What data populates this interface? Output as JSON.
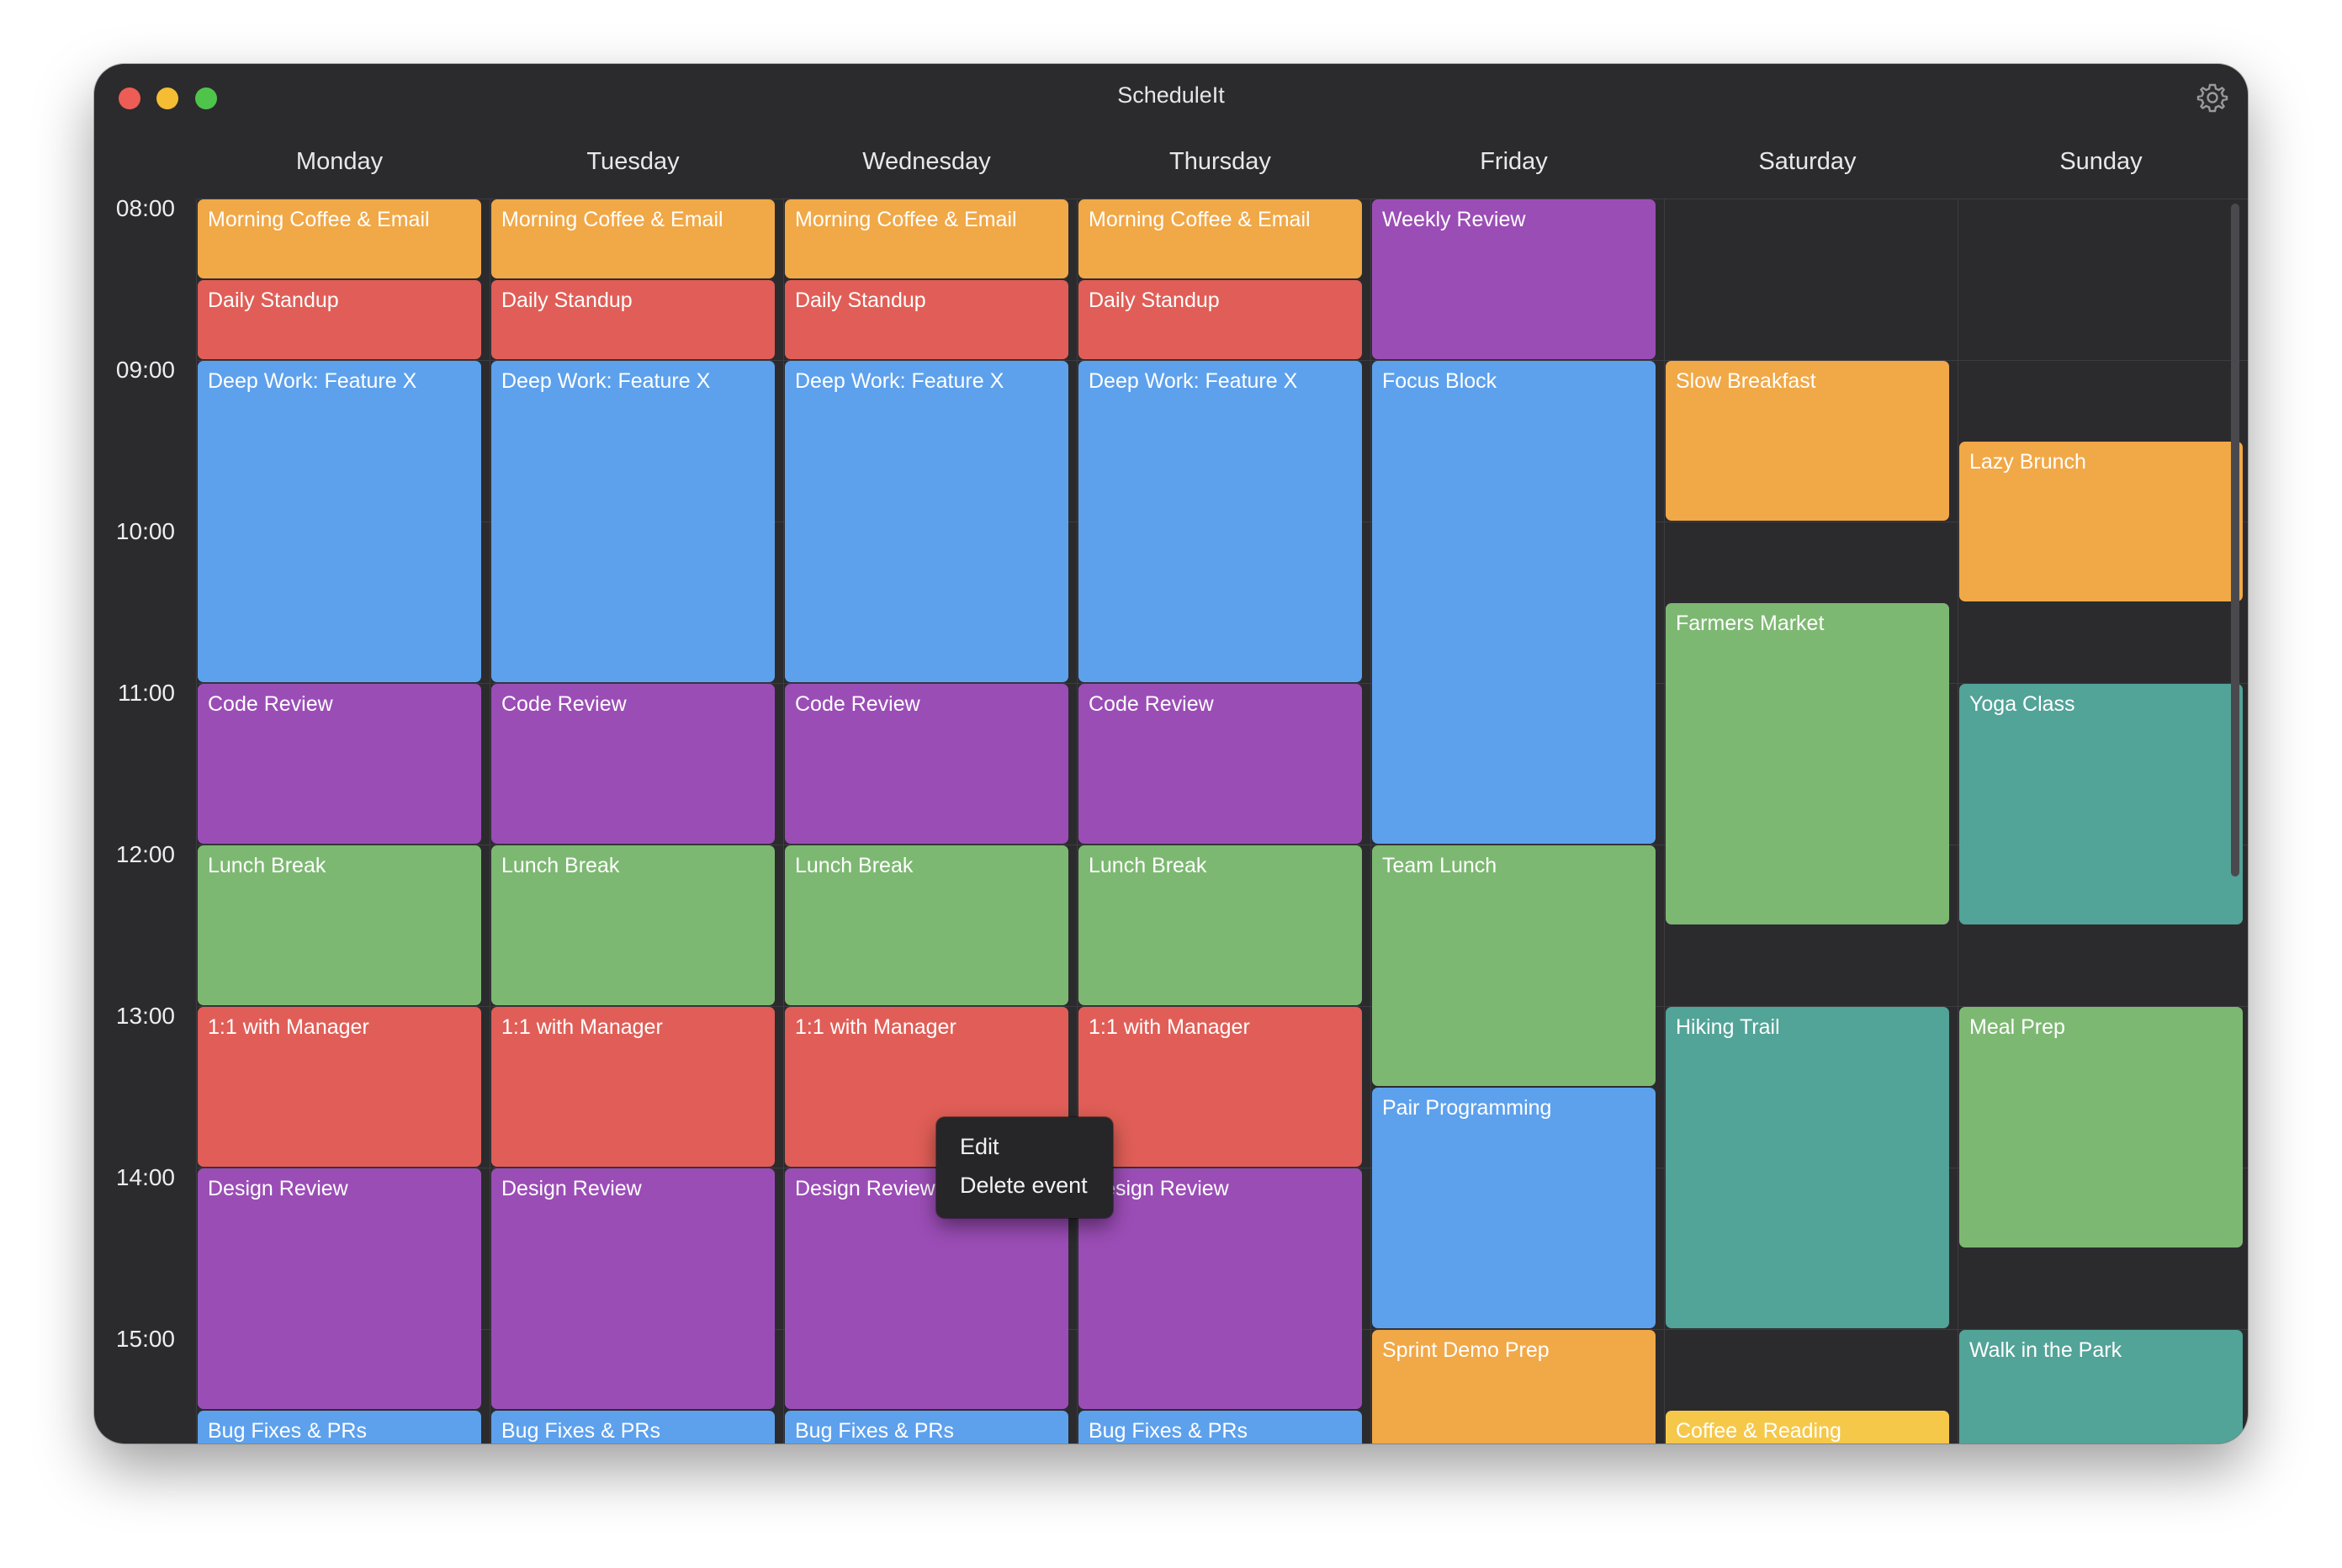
{
  "app": {
    "title": "ScheduleIt"
  },
  "window_controls": {
    "close": "close",
    "minimize": "minimize",
    "zoom": "zoom",
    "settings_icon": "gear-icon"
  },
  "colors": {
    "orange": "#f1a847",
    "red": "#e05e57",
    "blue": "#5da1ed",
    "purple": "#9b4db6",
    "green": "#7db872",
    "teal": "#52a398",
    "yellow": "#f5c84a"
  },
  "days": [
    "Monday",
    "Tuesday",
    "Wednesday",
    "Thursday",
    "Friday",
    "Saturday",
    "Sunday"
  ],
  "times": [
    "08:00",
    "09:00",
    "10:00",
    "11:00",
    "12:00",
    "13:00",
    "14:00",
    "15:00"
  ],
  "events": [
    {
      "day": 0,
      "start": "08:00",
      "end": "08:30",
      "title": "Morning Coffee & Email",
      "color": "orange"
    },
    {
      "day": 0,
      "start": "08:30",
      "end": "09:00",
      "title": "Daily Standup",
      "color": "red"
    },
    {
      "day": 0,
      "start": "09:00",
      "end": "11:00",
      "title": "Deep Work: Feature X",
      "color": "blue"
    },
    {
      "day": 0,
      "start": "11:00",
      "end": "12:00",
      "title": "Code Review",
      "color": "purple"
    },
    {
      "day": 0,
      "start": "12:00",
      "end": "13:00",
      "title": "Lunch Break",
      "color": "green"
    },
    {
      "day": 0,
      "start": "13:00",
      "end": "14:00",
      "title": "1:1 with Manager",
      "color": "red"
    },
    {
      "day": 0,
      "start": "14:00",
      "end": "15:30",
      "title": "Design Review",
      "color": "purple"
    },
    {
      "day": 0,
      "start": "15:30",
      "end": "16:30",
      "title": "Bug Fixes & PRs",
      "color": "blue"
    },
    {
      "day": 1,
      "start": "08:00",
      "end": "08:30",
      "title": "Morning Coffee & Email",
      "color": "orange"
    },
    {
      "day": 1,
      "start": "08:30",
      "end": "09:00",
      "title": "Daily Standup",
      "color": "red"
    },
    {
      "day": 1,
      "start": "09:00",
      "end": "11:00",
      "title": "Deep Work: Feature X",
      "color": "blue"
    },
    {
      "day": 1,
      "start": "11:00",
      "end": "12:00",
      "title": "Code Review",
      "color": "purple"
    },
    {
      "day": 1,
      "start": "12:00",
      "end": "13:00",
      "title": "Lunch Break",
      "color": "green"
    },
    {
      "day": 1,
      "start": "13:00",
      "end": "14:00",
      "title": "1:1 with Manager",
      "color": "red"
    },
    {
      "day": 1,
      "start": "14:00",
      "end": "15:30",
      "title": "Design Review",
      "color": "purple"
    },
    {
      "day": 1,
      "start": "15:30",
      "end": "16:30",
      "title": "Bug Fixes & PRs",
      "color": "blue"
    },
    {
      "day": 2,
      "start": "08:00",
      "end": "08:30",
      "title": "Morning Coffee & Email",
      "color": "orange"
    },
    {
      "day": 2,
      "start": "08:30",
      "end": "09:00",
      "title": "Daily Standup",
      "color": "red"
    },
    {
      "day": 2,
      "start": "09:00",
      "end": "11:00",
      "title": "Deep Work: Feature X",
      "color": "blue"
    },
    {
      "day": 2,
      "start": "11:00",
      "end": "12:00",
      "title": "Code Review",
      "color": "purple"
    },
    {
      "day": 2,
      "start": "12:00",
      "end": "13:00",
      "title": "Lunch Break",
      "color": "green"
    },
    {
      "day": 2,
      "start": "13:00",
      "end": "14:00",
      "title": "1:1 with Manager",
      "color": "red"
    },
    {
      "day": 2,
      "start": "14:00",
      "end": "15:30",
      "title": "Design Review",
      "color": "purple"
    },
    {
      "day": 2,
      "start": "15:30",
      "end": "16:30",
      "title": "Bug Fixes & PRs",
      "color": "blue"
    },
    {
      "day": 3,
      "start": "08:00",
      "end": "08:30",
      "title": "Morning Coffee & Email",
      "color": "orange"
    },
    {
      "day": 3,
      "start": "08:30",
      "end": "09:00",
      "title": "Daily Standup",
      "color": "red"
    },
    {
      "day": 3,
      "start": "09:00",
      "end": "11:00",
      "title": "Deep Work: Feature X",
      "color": "blue"
    },
    {
      "day": 3,
      "start": "11:00",
      "end": "12:00",
      "title": "Code Review",
      "color": "purple"
    },
    {
      "day": 3,
      "start": "12:00",
      "end": "13:00",
      "title": "Lunch Break",
      "color": "green"
    },
    {
      "day": 3,
      "start": "13:00",
      "end": "14:00",
      "title": "1:1 with Manager",
      "color": "red"
    },
    {
      "day": 3,
      "start": "14:00",
      "end": "15:30",
      "title": "Design Review",
      "color": "purple"
    },
    {
      "day": 3,
      "start": "15:30",
      "end": "16:30",
      "title": "Bug Fixes & PRs",
      "color": "blue"
    },
    {
      "day": 4,
      "start": "08:00",
      "end": "09:00",
      "title": "Weekly Review",
      "color": "purple"
    },
    {
      "day": 4,
      "start": "09:00",
      "end": "12:00",
      "title": "Focus Block",
      "color": "blue"
    },
    {
      "day": 4,
      "start": "12:00",
      "end": "13:30",
      "title": "Team Lunch",
      "color": "green"
    },
    {
      "day": 4,
      "start": "13:30",
      "end": "15:00",
      "title": "Pair Programming",
      "color": "blue"
    },
    {
      "day": 4,
      "start": "15:00",
      "end": "16:30",
      "title": "Sprint Demo Prep",
      "color": "orange"
    },
    {
      "day": 5,
      "start": "09:00",
      "end": "10:00",
      "title": "Slow Breakfast",
      "color": "orange"
    },
    {
      "day": 5,
      "start": "10:30",
      "end": "12:30",
      "title": "Farmers Market",
      "color": "green"
    },
    {
      "day": 5,
      "start": "13:00",
      "end": "15:00",
      "title": "Hiking Trail",
      "color": "teal"
    },
    {
      "day": 5,
      "start": "15:30",
      "end": "16:30",
      "title": "Coffee & Reading",
      "color": "yellow"
    },
    {
      "day": 6,
      "start": "09:30",
      "end": "10:30",
      "title": "Lazy Brunch",
      "color": "orange"
    },
    {
      "day": 6,
      "start": "11:00",
      "end": "12:30",
      "title": "Yoga Class",
      "color": "teal"
    },
    {
      "day": 6,
      "start": "13:00",
      "end": "14:30",
      "title": "Meal Prep",
      "color": "green"
    },
    {
      "day": 6,
      "start": "15:00",
      "end": "16:30",
      "title": "Walk in the Park",
      "color": "teal"
    }
  ],
  "context_menu": {
    "target_event": "1:1 with Manager (Wednesday)",
    "items": [
      "Edit",
      "Delete event"
    ]
  }
}
